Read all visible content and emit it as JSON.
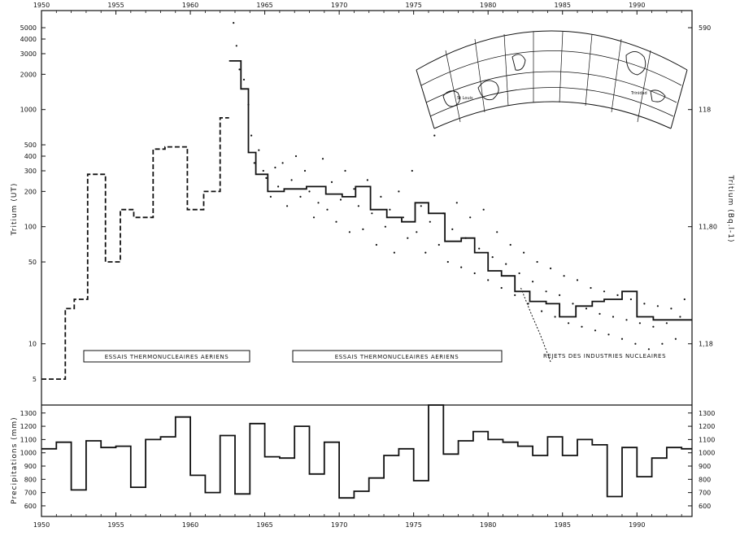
{
  "figure": {
    "top_axis": {
      "tick_labels": [
        "1950",
        "1955",
        "1960",
        "1965",
        "1970",
        "1975",
        "1980",
        "1985",
        "1990"
      ]
    },
    "bottom_axis": {
      "tick_labels": [
        "1950",
        "1955",
        "1960",
        "1965",
        "1970",
        "1975",
        "1980",
        "1985",
        "1990"
      ]
    },
    "annotations": {
      "box1": "ESSAIS THERMONUCLEAIRES AERIENS",
      "box2": "ESSAIS THERMONUCLEAIRES AERIENS",
      "rejets": "REJETS DES INDUSTRIES NUCLEAIRES"
    },
    "map_labels": [
      "St Louis",
      "Trinidad"
    ]
  },
  "chart_data": [
    {
      "type": "line",
      "ylabel": "Tritium (UT)",
      "ylabel_right": "Tritium (Bq.l-1)",
      "yscale": "log",
      "xlim": [
        1950,
        1993.7
      ],
      "ylim": [
        3,
        7000
      ],
      "yticks": [
        5,
        10,
        50,
        100,
        200,
        300,
        400,
        500,
        1000,
        2000,
        3000,
        4000,
        5000
      ],
      "ytick_labels": [
        "5",
        "10",
        "50",
        "100",
        "200",
        "300",
        "400",
        "500",
        "1000",
        "2000",
        "3000",
        "4000",
        "5000"
      ],
      "yticks_right": [
        10,
        100,
        1000,
        5000
      ],
      "ytick_labels_right": [
        "1,18",
        "11,80",
        "118",
        "590"
      ],
      "series": [
        {
          "style": "dashed-step",
          "x": [
            1950,
            1951.6,
            1952.2,
            1953.1,
            1954.3,
            1955.3,
            1956.2,
            1957.5,
            1958.3,
            1959.8,
            1960.9,
            1962.0
          ],
          "values": [
            5,
            20,
            24,
            280,
            50,
            140,
            120,
            460,
            480,
            140,
            200,
            850
          ]
        },
        {
          "style": "solid-step",
          "x": [
            1962.6,
            1963.4,
            1963.9,
            1964.4,
            1965.2,
            1966.3,
            1967.8,
            1969.1,
            1970.2,
            1971.1,
            1972.1,
            1973.2,
            1974.2,
            1975.1,
            1976.0,
            1977.1,
            1978.2,
            1979.1,
            1980.0,
            1980.9,
            1981.8,
            1982.8,
            1983.9,
            1984.8,
            1985.9,
            1987.0,
            1987.8,
            1989.0,
            1990.0,
            1991.1,
            1993.0
          ],
          "values": [
            2600,
            1500,
            430,
            280,
            200,
            210,
            220,
            190,
            180,
            220,
            140,
            120,
            110,
            160,
            130,
            75,
            80,
            60,
            42,
            38,
            28,
            23,
            22,
            17,
            21,
            23,
            24,
            28,
            17,
            16,
            16
          ]
        },
        {
          "style": "dotted",
          "name": "",
          "x": [
            1982.2,
            1982.9,
            1983.5,
            1984.2
          ],
          "values": [
            30,
            18,
            12,
            7
          ]
        },
        {
          "style": "points",
          "x": [
            1962.9,
            1963.1,
            1963.3,
            1963.6,
            1963.9,
            1964.1,
            1964.3,
            1964.6,
            1964.9,
            1965.1,
            1965.4,
            1965.7,
            1965.9,
            1966.2,
            1966.5,
            1966.8,
            1967.1,
            1967.4,
            1967.7,
            1968.0,
            1968.3,
            1968.6,
            1968.9,
            1969.2,
            1969.5,
            1969.8,
            1970.1,
            1970.4,
            1970.7,
            1971.0,
            1971.3,
            1971.6,
            1971.9,
            1972.2,
            1972.5,
            1972.8,
            1973.1,
            1973.4,
            1973.7,
            1974.0,
            1974.3,
            1974.6,
            1974.9,
            1975.2,
            1975.5,
            1975.8,
            1976.1,
            1976.4,
            1976.7,
            1977.0,
            1977.3,
            1977.6,
            1977.9,
            1978.2,
            1978.5,
            1978.8,
            1979.1,
            1979.4,
            1979.7,
            1980.0,
            1980.3,
            1980.6,
            1980.9,
            1981.2,
            1981.5,
            1981.8,
            1982.1,
            1982.4,
            1982.7,
            1983.0,
            1983.3,
            1983.6,
            1983.9,
            1984.2,
            1984.5,
            1984.8,
            1985.1,
            1985.4,
            1985.7,
            1986.0,
            1986.3,
            1986.6,
            1986.9,
            1987.2,
            1987.5,
            1987.8,
            1988.1,
            1988.4,
            1988.7,
            1989.0,
            1989.3,
            1989.6,
            1989.9,
            1990.2,
            1990.5,
            1990.8,
            1991.1,
            1991.4,
            1991.7,
            1992.0,
            1992.3,
            1992.6,
            1992.9,
            1993.2
          ],
          "values": [
            5500,
            3500,
            2200,
            1800,
            1100,
            600,
            350,
            450,
            300,
            260,
            180,
            320,
            220,
            350,
            150,
            250,
            400,
            180,
            300,
            200,
            120,
            160,
            380,
            140,
            240,
            110,
            170,
            300,
            90,
            210,
            150,
            95,
            250,
            130,
            70,
            180,
            100,
            140,
            60,
            200,
            120,
            80,
            300,
            90,
            150,
            60,
            110,
            600,
            70,
            130,
            50,
            95,
            160,
            45,
            80,
            120,
            40,
            65,
            140,
            35,
            55,
            90,
            30,
            48,
            70,
            26,
            40,
            60,
            22,
            34,
            50,
            19,
            28,
            44,
            17,
            26,
            38,
            15,
            22,
            35,
            14,
            20,
            30,
            13,
            18,
            28,
            12,
            17,
            26,
            11,
            16,
            24,
            10,
            15,
            22,
            9,
            14,
            21,
            10,
            15,
            20,
            11,
            17,
            24
          ]
        }
      ]
    },
    {
      "type": "line",
      "ylabel": "Precipitations (mm)",
      "xlim": [
        1950,
        1993.7
      ],
      "ylim": [
        520,
        1360
      ],
      "yticks": [
        600,
        700,
        800,
        900,
        1000,
        1100,
        1200,
        1300
      ],
      "ytick_labels": [
        "600",
        "700",
        "800",
        "900",
        "1000",
        "1100",
        "1200",
        "1300"
      ],
      "series": [
        {
          "style": "solid-step",
          "x": [
            1950,
            1951,
            1952,
            1953,
            1954,
            1955,
            1956,
            1957,
            1958,
            1959,
            1960,
            1961,
            1962,
            1963,
            1964,
            1965,
            1966,
            1967,
            1968,
            1969,
            1970,
            1971,
            1972,
            1973,
            1974,
            1975,
            1976,
            1977,
            1978,
            1979,
            1980,
            1981,
            1982,
            1983,
            1984,
            1985,
            1986,
            1987,
            1988,
            1989,
            1990,
            1991,
            1992,
            1993
          ],
          "values": [
            1030,
            1080,
            720,
            1090,
            1040,
            1050,
            740,
            1100,
            1120,
            1270,
            830,
            700,
            1130,
            690,
            1220,
            970,
            960,
            1200,
            840,
            1080,
            660,
            710,
            810,
            980,
            1030,
            790,
            1360,
            990,
            1090,
            1160,
            1100,
            1080,
            1050,
            980,
            1120,
            980,
            1100,
            1060,
            670,
            1040,
            820,
            960,
            1040,
            1030
          ]
        }
      ]
    }
  ]
}
